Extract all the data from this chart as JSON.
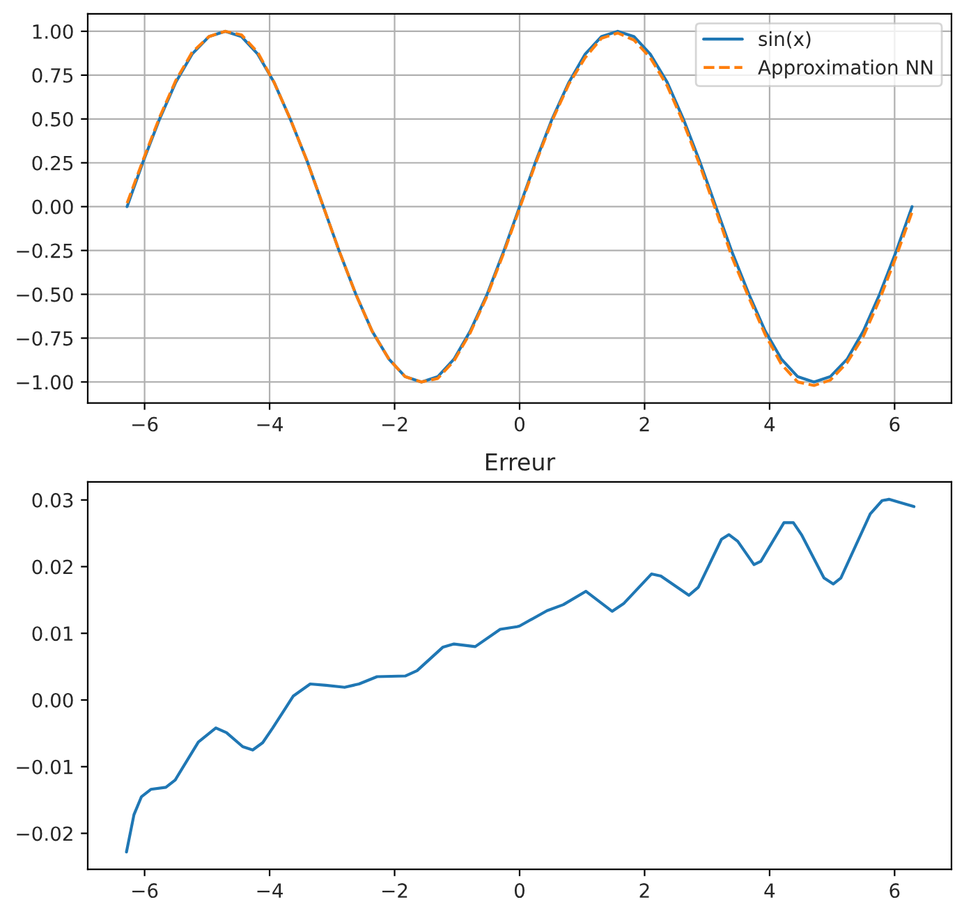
{
  "chart_data": [
    {
      "type": "line",
      "x": [
        -6.28,
        -6.02,
        -5.76,
        -5.5,
        -5.24,
        -4.97,
        -4.71,
        -4.45,
        -4.19,
        -3.93,
        -3.67,
        -3.4,
        -3.14,
        -2.88,
        -2.62,
        -2.36,
        -2.09,
        -1.83,
        -1.57,
        -1.31,
        -1.05,
        -0.79,
        -0.52,
        -0.26,
        0,
        0.26,
        0.52,
        0.79,
        1.05,
        1.31,
        1.57,
        1.83,
        2.09,
        2.36,
        2.62,
        2.88,
        3.14,
        3.4,
        3.67,
        3.93,
        4.19,
        4.45,
        4.71,
        4.97,
        5.24,
        5.5,
        5.76,
        6.02,
        6.28
      ],
      "series": [
        {
          "name": "sin(x)",
          "color": "#1f77b4",
          "line_style": "solid",
          "values": [
            0,
            0.26,
            0.5,
            0.71,
            0.87,
            0.97,
            1,
            0.97,
            0.87,
            0.71,
            0.5,
            0.26,
            0,
            -0.26,
            -0.5,
            -0.71,
            -0.87,
            -0.97,
            -1,
            -0.97,
            -0.87,
            -0.71,
            -0.5,
            -0.26,
            0,
            0.26,
            0.5,
            0.71,
            0.87,
            0.97,
            1,
            0.97,
            0.87,
            0.71,
            0.5,
            0.26,
            0,
            -0.26,
            -0.5,
            -0.71,
            -0.87,
            -0.97,
            -1,
            -0.97,
            -0.87,
            -0.71,
            -0.5,
            -0.26,
            0
          ]
        },
        {
          "name": "Approximation NN",
          "color": "#ff7f0e",
          "line_style": "dashed",
          "values": [
            0.02,
            0.27,
            0.51,
            0.72,
            0.88,
            0.97,
            1,
            0.98,
            0.88,
            0.71,
            0.5,
            0.26,
            0,
            -0.26,
            -0.5,
            -0.71,
            -0.87,
            -0.97,
            -1,
            -0.98,
            -0.88,
            -0.72,
            -0.51,
            -0.27,
            -0.01,
            0.25,
            0.49,
            0.7,
            0.85,
            0.96,
            0.99,
            0.95,
            0.85,
            0.69,
            0.48,
            0.24,
            -0.02,
            -0.29,
            -0.52,
            -0.73,
            -0.9,
            -1,
            -1.02,
            -0.99,
            -0.89,
            -0.74,
            -0.53,
            -0.29,
            -0.03
          ]
        }
      ],
      "xlim": [
        -6.91,
        6.91
      ],
      "xticks": [
        {
          "value": -6,
          "label": "−6"
        },
        {
          "value": -4,
          "label": "−4"
        },
        {
          "value": -2,
          "label": "−2"
        },
        0,
        2,
        4,
        6
      ],
      "ylim": [
        -1.12,
        1.1
      ],
      "yticks": [
        {
          "value": -1,
          "label": "−1.00"
        },
        {
          "value": -0.75,
          "label": "−0.75"
        },
        {
          "value": -0.5,
          "label": "−0.50"
        },
        {
          "value": -0.25,
          "label": "−0.25"
        },
        {
          "value": 0,
          "label": "0.00"
        },
        {
          "value": 0.25,
          "label": "0.25"
        },
        {
          "value": 0.5,
          "label": "0.50"
        },
        {
          "value": 0.75,
          "label": "0.75"
        },
        {
          "value": 1,
          "label": "1.00"
        }
      ],
      "grid": true,
      "legend": "top right"
    },
    {
      "type": "line",
      "title": "Erreur",
      "x": [
        -6.29,
        -6.17,
        -6.05,
        -5.9,
        -5.66,
        -5.51,
        -5.14,
        -4.86,
        -4.69,
        -4.43,
        -4.27,
        -4.11,
        -3.95,
        -3.62,
        -3.35,
        -3.1,
        -2.8,
        -2.57,
        -2.28,
        -1.83,
        -1.64,
        -1.23,
        -1.05,
        -0.71,
        -0.31,
        -0.04,
        0.0,
        0.44,
        0.7,
        1.06,
        1.48,
        1.67,
        2.11,
        2.26,
        2.71,
        2.86,
        3.23,
        3.35,
        3.49,
        3.75,
        3.86,
        4.23,
        4.38,
        4.51,
        4.87,
        5.02,
        5.14,
        5.61,
        5.8,
        5.91,
        6.06,
        6.31
      ],
      "series": [
        {
          "color": "#1f77b4",
          "line_style": "solid",
          "values": [
            -0.0228,
            -0.0172,
            -0.0145,
            -0.0134,
            -0.0131,
            -0.012,
            -0.0063,
            -0.0042,
            -0.0049,
            -0.007,
            -0.0075,
            -0.0064,
            -0.0042,
            0.0006,
            0.0024,
            0.0022,
            0.0019,
            0.0024,
            0.0035,
            0.0036,
            0.0044,
            0.0079,
            0.0084,
            0.008,
            0.0106,
            0.011,
            0.0111,
            0.0134,
            0.0143,
            0.0163,
            0.0133,
            0.0145,
            0.0189,
            0.0186,
            0.0157,
            0.0169,
            0.0241,
            0.0248,
            0.0238,
            0.0203,
            0.0208,
            0.0266,
            0.0266,
            0.0248,
            0.0183,
            0.0174,
            0.0183,
            0.0279,
            0.0299,
            0.0301,
            0.0297,
            0.029
          ]
        }
      ],
      "xlim": [
        -6.91,
        6.91
      ],
      "xticks": [
        {
          "value": -6,
          "label": "−6"
        },
        {
          "value": -4,
          "label": "−4"
        },
        {
          "value": -2,
          "label": "−2"
        },
        0,
        2,
        4,
        6
      ],
      "ylim": [
        -0.0254,
        0.0327
      ],
      "yticks": [
        {
          "value": -0.02,
          "label": "−0.02"
        },
        {
          "value": -0.01,
          "label": "−0.01"
        },
        {
          "value": 0,
          "label": "0.00"
        },
        {
          "value": 0.01,
          "label": "0.01"
        },
        {
          "value": 0.02,
          "label": "0.02"
        },
        {
          "value": 0.03,
          "label": "0.03"
        }
      ],
      "grid": false
    }
  ]
}
